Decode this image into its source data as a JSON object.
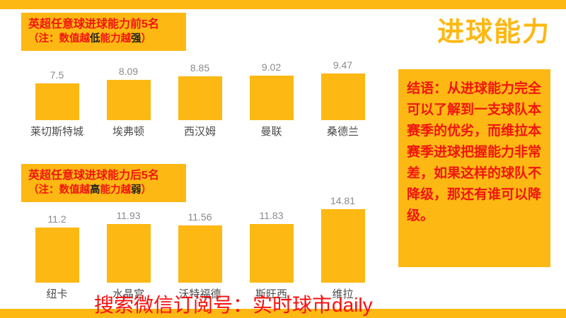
{
  "page": {
    "title": "进球能力",
    "watermark": "搜索微信订阅号：实时球市daily"
  },
  "colors": {
    "brand_yellow": "#FDB813",
    "text_red": "#F01510",
    "note_emphasis": "#222222",
    "value_gray": "#8A8A8A",
    "label_gray": "#4D4D4D"
  },
  "conclusion": {
    "text": "结语：从进球能力完全可以了解到一支球队本赛季的优劣，而维拉本赛季进球把握能力非常差，如果这样的球队不降级，那还有谁可以降级。"
  },
  "chart_data": [
    {
      "type": "bar",
      "title": "英超任意球进球能力前5名",
      "note": "（注：数值越低能力越强）",
      "note_parts": [
        {
          "text": "（注：数值越",
          "em": false
        },
        {
          "text": "低",
          "em": true
        },
        {
          "text": "能力越",
          "em": false
        },
        {
          "text": "强",
          "em": true
        },
        {
          "text": "）",
          "em": false
        }
      ],
      "categories": [
        "莱切斯特城",
        "埃弗顿",
        "西汉姆",
        "曼联",
        "桑德兰"
      ],
      "values": [
        7.5,
        8.09,
        8.85,
        9.02,
        9.47
      ],
      "ylim": [
        0,
        16
      ],
      "grid": false,
      "legend": false,
      "bar_color": "#FDB813"
    },
    {
      "type": "bar",
      "title": "英超任意球进球能力后5名",
      "note": "（注：数值越高能力越弱）",
      "note_parts": [
        {
          "text": "（注：数值越",
          "em": false
        },
        {
          "text": "高",
          "em": true
        },
        {
          "text": "能力越",
          "em": false
        },
        {
          "text": "弱",
          "em": true
        },
        {
          "text": "）",
          "em": false
        }
      ],
      "categories": [
        "纽卡",
        "水晶宫",
        "沃特福德",
        "斯旺西",
        "维拉"
      ],
      "values": [
        11.2,
        11.93,
        11.56,
        11.83,
        14.81
      ],
      "ylim": [
        0,
        16
      ],
      "grid": false,
      "legend": false,
      "bar_color": "#FDB813"
    }
  ]
}
